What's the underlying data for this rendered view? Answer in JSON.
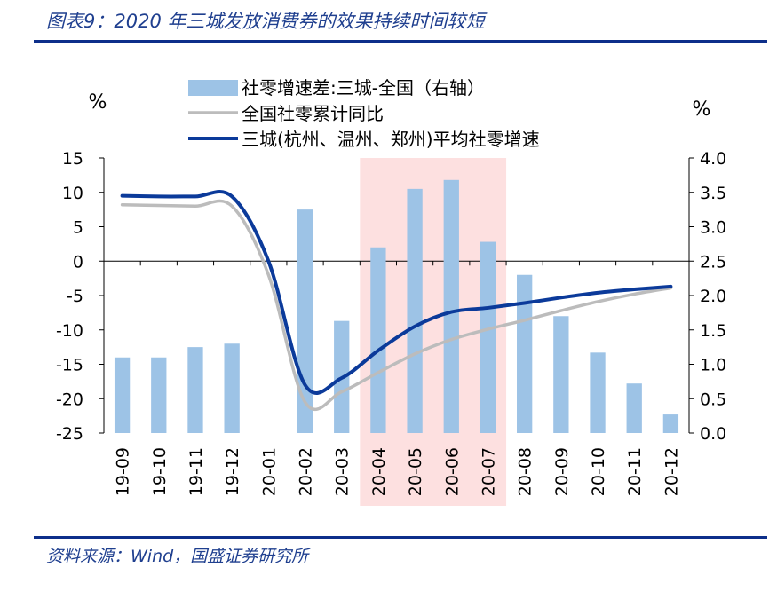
{
  "header": {
    "title": "图表9：2020 年三城发放消费券的效果持续时间较短"
  },
  "footer": {
    "source": "资料来源：Wind，国盛证券研究所"
  },
  "chart_data": {
    "type": "bar",
    "categories": [
      "19-09",
      "19-10",
      "19-11",
      "19-12",
      "20-01",
      "20-02",
      "20-03",
      "20-04",
      "20-05",
      "20-06",
      "20-07",
      "20-08",
      "20-09",
      "20-10",
      "20-11",
      "20-12"
    ],
    "left_axis": {
      "unit": "%",
      "ylim": [
        -25,
        15
      ],
      "ticks": [
        15,
        10,
        5,
        0,
        -5,
        -10,
        -15,
        -20,
        -25
      ]
    },
    "right_axis": {
      "unit": "%",
      "ylim": [
        0.0,
        4.0
      ],
      "ticks": [
        "4.0",
        "3.5",
        "3.0",
        "2.5",
        "2.0",
        "1.5",
        "1.0",
        "0.5",
        "0.0"
      ]
    },
    "highlight_range": [
      "20-04",
      "20-07"
    ],
    "series": [
      {
        "name": "社零增速差:三城-全国（右轴）",
        "type": "bar",
        "axis": "right",
        "color": "#9dc3e6",
        "values": [
          1.1,
          1.1,
          1.25,
          1.3,
          null,
          3.25,
          1.63,
          2.7,
          3.55,
          3.68,
          2.78,
          2.3,
          1.7,
          1.17,
          0.72,
          0.27
        ]
      },
      {
        "name": "全国社零累计同比",
        "type": "line",
        "axis": "left",
        "color": "#bcbcbc",
        "values": [
          8.2,
          8.1,
          8.0,
          8.0,
          -2.0,
          -20.5,
          -19.0,
          -16.2,
          -13.5,
          -11.4,
          -9.9,
          -8.6,
          -7.2,
          -5.9,
          -4.8,
          -3.9
        ]
      },
      {
        "name": "三城(杭州、温州、郑州)平均社零增速",
        "type": "line",
        "axis": "left",
        "color": "#0b3a9a",
        "values": [
          9.5,
          9.4,
          9.4,
          9.4,
          0.0,
          -18.0,
          -17.0,
          -13.0,
          -9.5,
          -7.4,
          -6.8,
          -6.1,
          -5.3,
          -4.6,
          -4.1,
          -3.7
        ]
      }
    ]
  }
}
